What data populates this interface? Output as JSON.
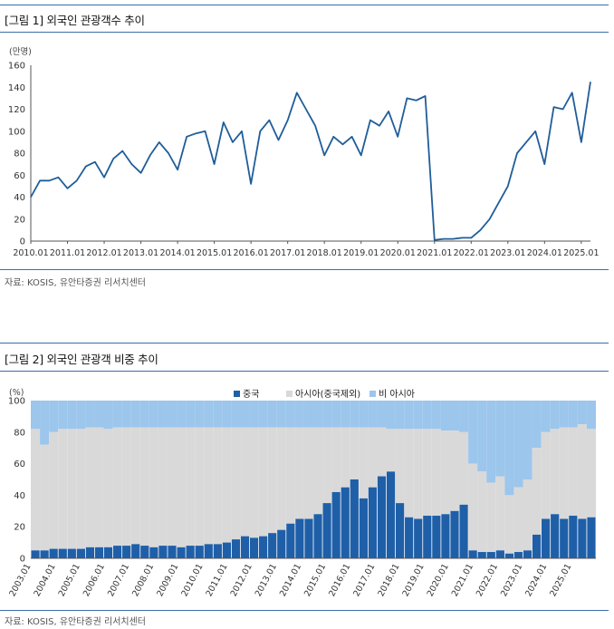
{
  "figure1": {
    "title": "[그림 1] 외국인 관광객수 추이",
    "source": "자료: KOSIS, 유안타증권 리서치센터"
  },
  "figure2": {
    "title": "[그림 2] 외국인 관광객 비중 추이",
    "source": "자료: KOSIS, 유안타증권 리서치센터"
  },
  "colors": {
    "rule": "#3b6ea8",
    "line": "#1f5d9a",
    "china": "#1f5fa8",
    "asia_ex": "#d9d9d9",
    "non_asia": "#9cc6ec"
  },
  "chart_data": [
    {
      "type": "line",
      "title": "[그림 1] 외국인 관광객수 추이",
      "unit_label": "(만명)",
      "xlabel": "",
      "ylabel": "만명",
      "ylim": [
        0,
        160
      ],
      "yticks": [
        "0",
        "20",
        "40",
        "60",
        "80",
        "100",
        "120",
        "140",
        "160"
      ],
      "xticks": [
        "2010.01",
        "2011.01",
        "2012.01",
        "2013.01",
        "2014.01",
        "2015.01",
        "2016.01",
        "2017.01",
        "2018.01",
        "2019.01",
        "2020.01",
        "2021.01",
        "2022.01",
        "2023.01",
        "2024.01",
        "2025.01"
      ],
      "grid": false,
      "series": [
        {
          "name": "외국인 관광객수",
          "x_start": "2010.01",
          "x_step": "quarter",
          "values": [
            40,
            55,
            55,
            58,
            48,
            55,
            68,
            72,
            58,
            75,
            82,
            70,
            62,
            78,
            90,
            80,
            65,
            95,
            98,
            100,
            70,
            108,
            90,
            100,
            52,
            100,
            110,
            92,
            110,
            135,
            120,
            105,
            78,
            95,
            88,
            95,
            78,
            110,
            105,
            118,
            95,
            130,
            128,
            132,
            1,
            2,
            2,
            3,
            3,
            10,
            20,
            35,
            50,
            80,
            90,
            100,
            70,
            122,
            120,
            135,
            90,
            145
          ]
        }
      ]
    },
    {
      "type": "bar",
      "stacked": true,
      "title": "[그림 2] 외국인 관광객 비중 추이",
      "unit_label": "(%)",
      "ylim": [
        0,
        100
      ],
      "yticks": [
        "0",
        "20",
        "40",
        "60",
        "80",
        "100"
      ],
      "xticks": [
        "2003.01",
        "2004.01",
        "2005.01",
        "2006.01",
        "2007.01",
        "2008.01",
        "2009.01",
        "2010.01",
        "2011.01",
        "2012.01",
        "2013.01",
        "2014.01",
        "2015.01",
        "2016.01",
        "2017.01",
        "2018.01",
        "2019.01",
        "2020.01",
        "2021.01",
        "2022.01",
        "2023.01",
        "2024.01",
        "2025.01"
      ],
      "legend": [
        "중국",
        "아시아(중국제외)",
        "비 아시아"
      ],
      "legend_position": "top",
      "x_start": "2003.01",
      "x_step": "quarter",
      "china": [
        5,
        5,
        6,
        6,
        6,
        6,
        7,
        7,
        7,
        8,
        8,
        9,
        8,
        7,
        8,
        8,
        7,
        8,
        8,
        9,
        9,
        10,
        12,
        14,
        13,
        14,
        16,
        18,
        22,
        25,
        25,
        28,
        35,
        42,
        45,
        50,
        38,
        45,
        52,
        55,
        35,
        26,
        25,
        27,
        27,
        28,
        30,
        34,
        5,
        4,
        4,
        5,
        3,
        4,
        5,
        15,
        25,
        28,
        25,
        27,
        25,
        26
      ],
      "non_asia": [
        18,
        28,
        20,
        18,
        18,
        18,
        17,
        17,
        18,
        17,
        17,
        17,
        17,
        17,
        17,
        17,
        17,
        17,
        17,
        17,
        17,
        17,
        17,
        17,
        17,
        17,
        17,
        17,
        17,
        17,
        17,
        17,
        17,
        17,
        17,
        17,
        17,
        17,
        17,
        18,
        18,
        18,
        18,
        18,
        18,
        19,
        19,
        20,
        40,
        45,
        52,
        48,
        60,
        55,
        50,
        30,
        20,
        18,
        17,
        17,
        15,
        18
      ]
    }
  ]
}
